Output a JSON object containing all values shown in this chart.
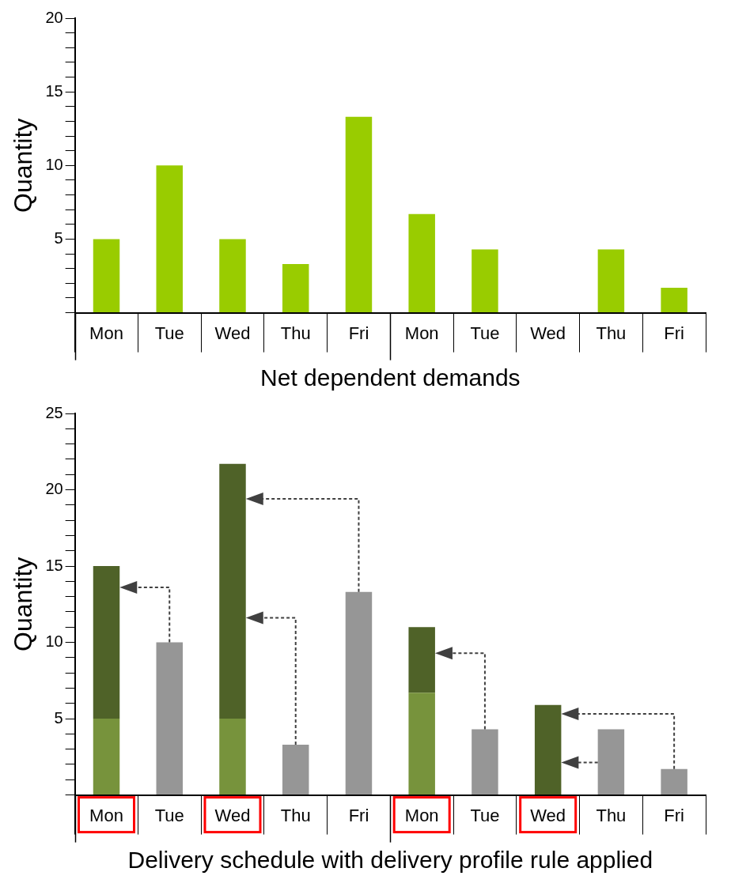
{
  "chart_data": [
    {
      "type": "bar",
      "xlabel": "Net dependent demands",
      "ylabel": "Quantity",
      "categories": [
        "Mon",
        "Tue",
        "Wed",
        "Thu",
        "Fri",
        "Mon",
        "Tue",
        "Wed",
        "Thu",
        "Fri"
      ],
      "values": [
        5,
        10,
        5,
        3.3,
        13.3,
        6.7,
        4.3,
        0,
        4.3,
        1.7
      ],
      "color": "#99cc00",
      "ylim": [
        0,
        20
      ],
      "yticks": [
        {
          "value": 0,
          "label": null
        },
        {
          "value": 1,
          "label": null
        },
        {
          "value": 2,
          "label": null
        },
        {
          "value": 3,
          "label": null
        },
        {
          "value": 4,
          "label": null
        },
        5,
        {
          "value": 6,
          "label": null
        },
        {
          "value": 7,
          "label": null
        },
        {
          "value": 8,
          "label": null
        },
        {
          "value": 9,
          "label": null
        },
        10,
        {
          "value": 11,
          "label": null
        },
        {
          "value": 12,
          "label": null
        },
        {
          "value": 13,
          "label": null
        },
        {
          "value": 14,
          "label": null
        },
        15,
        {
          "value": 16,
          "label": null
        },
        {
          "value": 17,
          "label": null
        },
        {
          "value": 18,
          "label": null
        },
        {
          "value": 19,
          "label": null
        },
        20
      ]
    },
    {
      "type": "bar",
      "stacked": true,
      "xlabel": "Delivery schedule with delivery profile rule applied",
      "ylabel": "Quantity",
      "categories": [
        "Mon",
        "Tue",
        "Wed",
        "Thu",
        "Fri",
        "Mon",
        "Tue",
        "Wed",
        "Thu",
        "Fri"
      ],
      "series": [
        {
          "color": "#77933c",
          "values": [
            5,
            null,
            5,
            null,
            null,
            6.7,
            null,
            null,
            null,
            null
          ]
        },
        {
          "color": "#4f6228",
          "values": [
            10,
            null,
            16.7,
            null,
            null,
            4.3,
            null,
            5.9,
            null,
            null
          ]
        },
        {
          "color": "#969696",
          "values": [
            null,
            10,
            null,
            3.3,
            13.3,
            null,
            4.3,
            null,
            4.3,
            1.7
          ]
        }
      ],
      "ylim": [
        0,
        25
      ],
      "yticks": [
        {
          "value": 0,
          "label": null
        },
        {
          "value": 1,
          "label": null
        },
        {
          "value": 2,
          "label": null
        },
        {
          "value": 3,
          "label": null
        },
        {
          "value": 4,
          "label": null
        },
        5,
        {
          "value": 6,
          "label": null
        },
        {
          "value": 7,
          "label": null
        },
        {
          "value": 8,
          "label": null
        },
        {
          "value": 9,
          "label": null
        },
        10,
        {
          "value": 11,
          "label": null
        },
        {
          "value": 12,
          "label": null
        },
        {
          "value": 13,
          "label": null
        },
        {
          "value": 14,
          "label": null
        },
        15,
        {
          "value": 16,
          "label": null
        },
        {
          "value": 17,
          "label": null
        },
        {
          "value": 18,
          "label": null
        },
        {
          "value": 19,
          "label": null
        },
        20,
        {
          "value": 21,
          "label": null
        },
        {
          "value": 22,
          "label": null
        },
        {
          "value": 23,
          "label": null
        },
        {
          "value": 24,
          "label": null
        },
        25
      ]
    }
  ]
}
